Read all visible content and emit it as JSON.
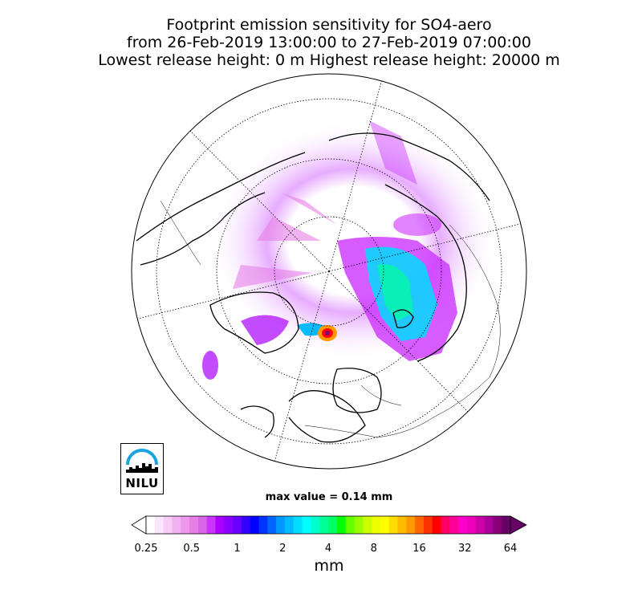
{
  "title": {
    "line1": "Footprint emission sensitivity for SO4-aero",
    "line2": "from 26-Feb-2019 13:00:00 to 27-Feb-2019 07:00:00",
    "line3": "Lowest release height: 0 m      Highest release height: 20000 m"
  },
  "logo": {
    "text": "NILU"
  },
  "max_value": "max value = 0.14 mm",
  "colorbar": {
    "ticks": [
      "0.25",
      "0.5",
      "1",
      "2",
      "4",
      "8",
      "16",
      "32",
      "64"
    ],
    "unit": "mm",
    "colors": [
      "#ffffff",
      "#fbe6fb",
      "#f7ccf7",
      "#f2b2f2",
      "#ee99ee",
      "#e680e6",
      "#d966e6",
      "#cc33ff",
      "#aa00ff",
      "#8800ff",
      "#6600ff",
      "#3300ff",
      "#0000ff",
      "#0033ff",
      "#0066ff",
      "#0099ff",
      "#00bbff",
      "#00ddff",
      "#00ffff",
      "#00ffcc",
      "#00ff99",
      "#00ff66",
      "#00ff00",
      "#66ff00",
      "#99ff00",
      "#ccff00",
      "#eeff00",
      "#ffff00",
      "#ffdd00",
      "#ffbb00",
      "#ff9900",
      "#ff6600",
      "#ff3300",
      "#ff0000",
      "#ff0066",
      "#ff0099",
      "#ff00cc",
      "#ee00bb",
      "#cc00aa",
      "#aa0099",
      "#880077",
      "#660066"
    ]
  }
}
